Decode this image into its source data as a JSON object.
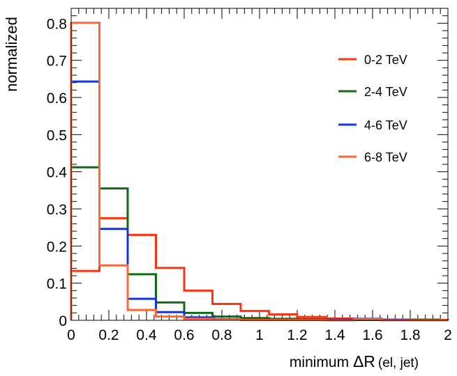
{
  "chart_data": {
    "type": "line",
    "style": "step-histogram",
    "title": "",
    "xlabel_prefix": "minimum ",
    "xlabel_symbol": "ΔR",
    "xlabel_suffix": "(el, jet)",
    "ylabel": "normalized",
    "xlim": [
      0,
      2
    ],
    "ylim": [
      0,
      0.84
    ],
    "bin_edges": [
      0,
      0.15,
      0.3,
      0.45,
      0.6,
      0.75,
      0.9,
      1.05,
      1.2,
      1.35,
      1.5,
      1.65,
      1.8,
      1.95,
      2.0
    ],
    "x_ticks": [
      {
        "v": 0,
        "label": "0"
      },
      {
        "v": 0.2,
        "label": "0.2"
      },
      {
        "v": 0.4,
        "label": "0.4"
      },
      {
        "v": 0.6,
        "label": "0.6"
      },
      {
        "v": 0.8,
        "label": "0.8"
      },
      {
        "v": 1,
        "label": "1"
      },
      {
        "v": 1.2,
        "label": "1.2"
      },
      {
        "v": 1.4,
        "label": "1.4"
      },
      {
        "v": 1.6,
        "label": "1.6"
      },
      {
        "v": 1.8,
        "label": "1.8"
      },
      {
        "v": 2,
        "label": "2"
      }
    ],
    "y_ticks": [
      {
        "v": 0,
        "label": "0"
      },
      {
        "v": 0.1,
        "label": "0.1"
      },
      {
        "v": 0.2,
        "label": "0.2"
      },
      {
        "v": 0.3,
        "label": "0.3"
      },
      {
        "v": 0.4,
        "label": "0.4"
      },
      {
        "v": 0.5,
        "label": "0.5"
      },
      {
        "v": 0.6,
        "label": "0.6"
      },
      {
        "v": 0.7,
        "label": "0.7"
      },
      {
        "v": 0.8,
        "label": "0.8"
      }
    ],
    "legend_position": "top-right",
    "series": [
      {
        "name": "0-2 TeV",
        "color": "#ff3311",
        "values": [
          0.133,
          0.275,
          0.23,
          0.141,
          0.08,
          0.044,
          0.025,
          0.016,
          0.009,
          0.005,
          0.004,
          0.002,
          0.002,
          0.001
        ]
      },
      {
        "name": "2-4 TeV",
        "color": "#0f6a14",
        "values": [
          0.412,
          0.355,
          0.124,
          0.048,
          0.02,
          0.01,
          0.006,
          0.004,
          0.003,
          0.002,
          0.001,
          0.001,
          0.001,
          0.0
        ]
      },
      {
        "name": "4-6 TeV",
        "color": "#1133ee",
        "values": [
          0.643,
          0.246,
          0.058,
          0.022,
          0.008,
          0.003,
          0.002,
          0.001,
          0.001,
          0.001,
          0.004,
          0.001,
          0.0,
          0.0
        ]
      },
      {
        "name": "6-8 TeV",
        "color": "#ff6633",
        "values": [
          0.801,
          0.148,
          0.028,
          0.01,
          0.004,
          0.002,
          0.001,
          0.001,
          0.001,
          0.0,
          0.003,
          0.0,
          0.0,
          0.0
        ]
      }
    ]
  }
}
